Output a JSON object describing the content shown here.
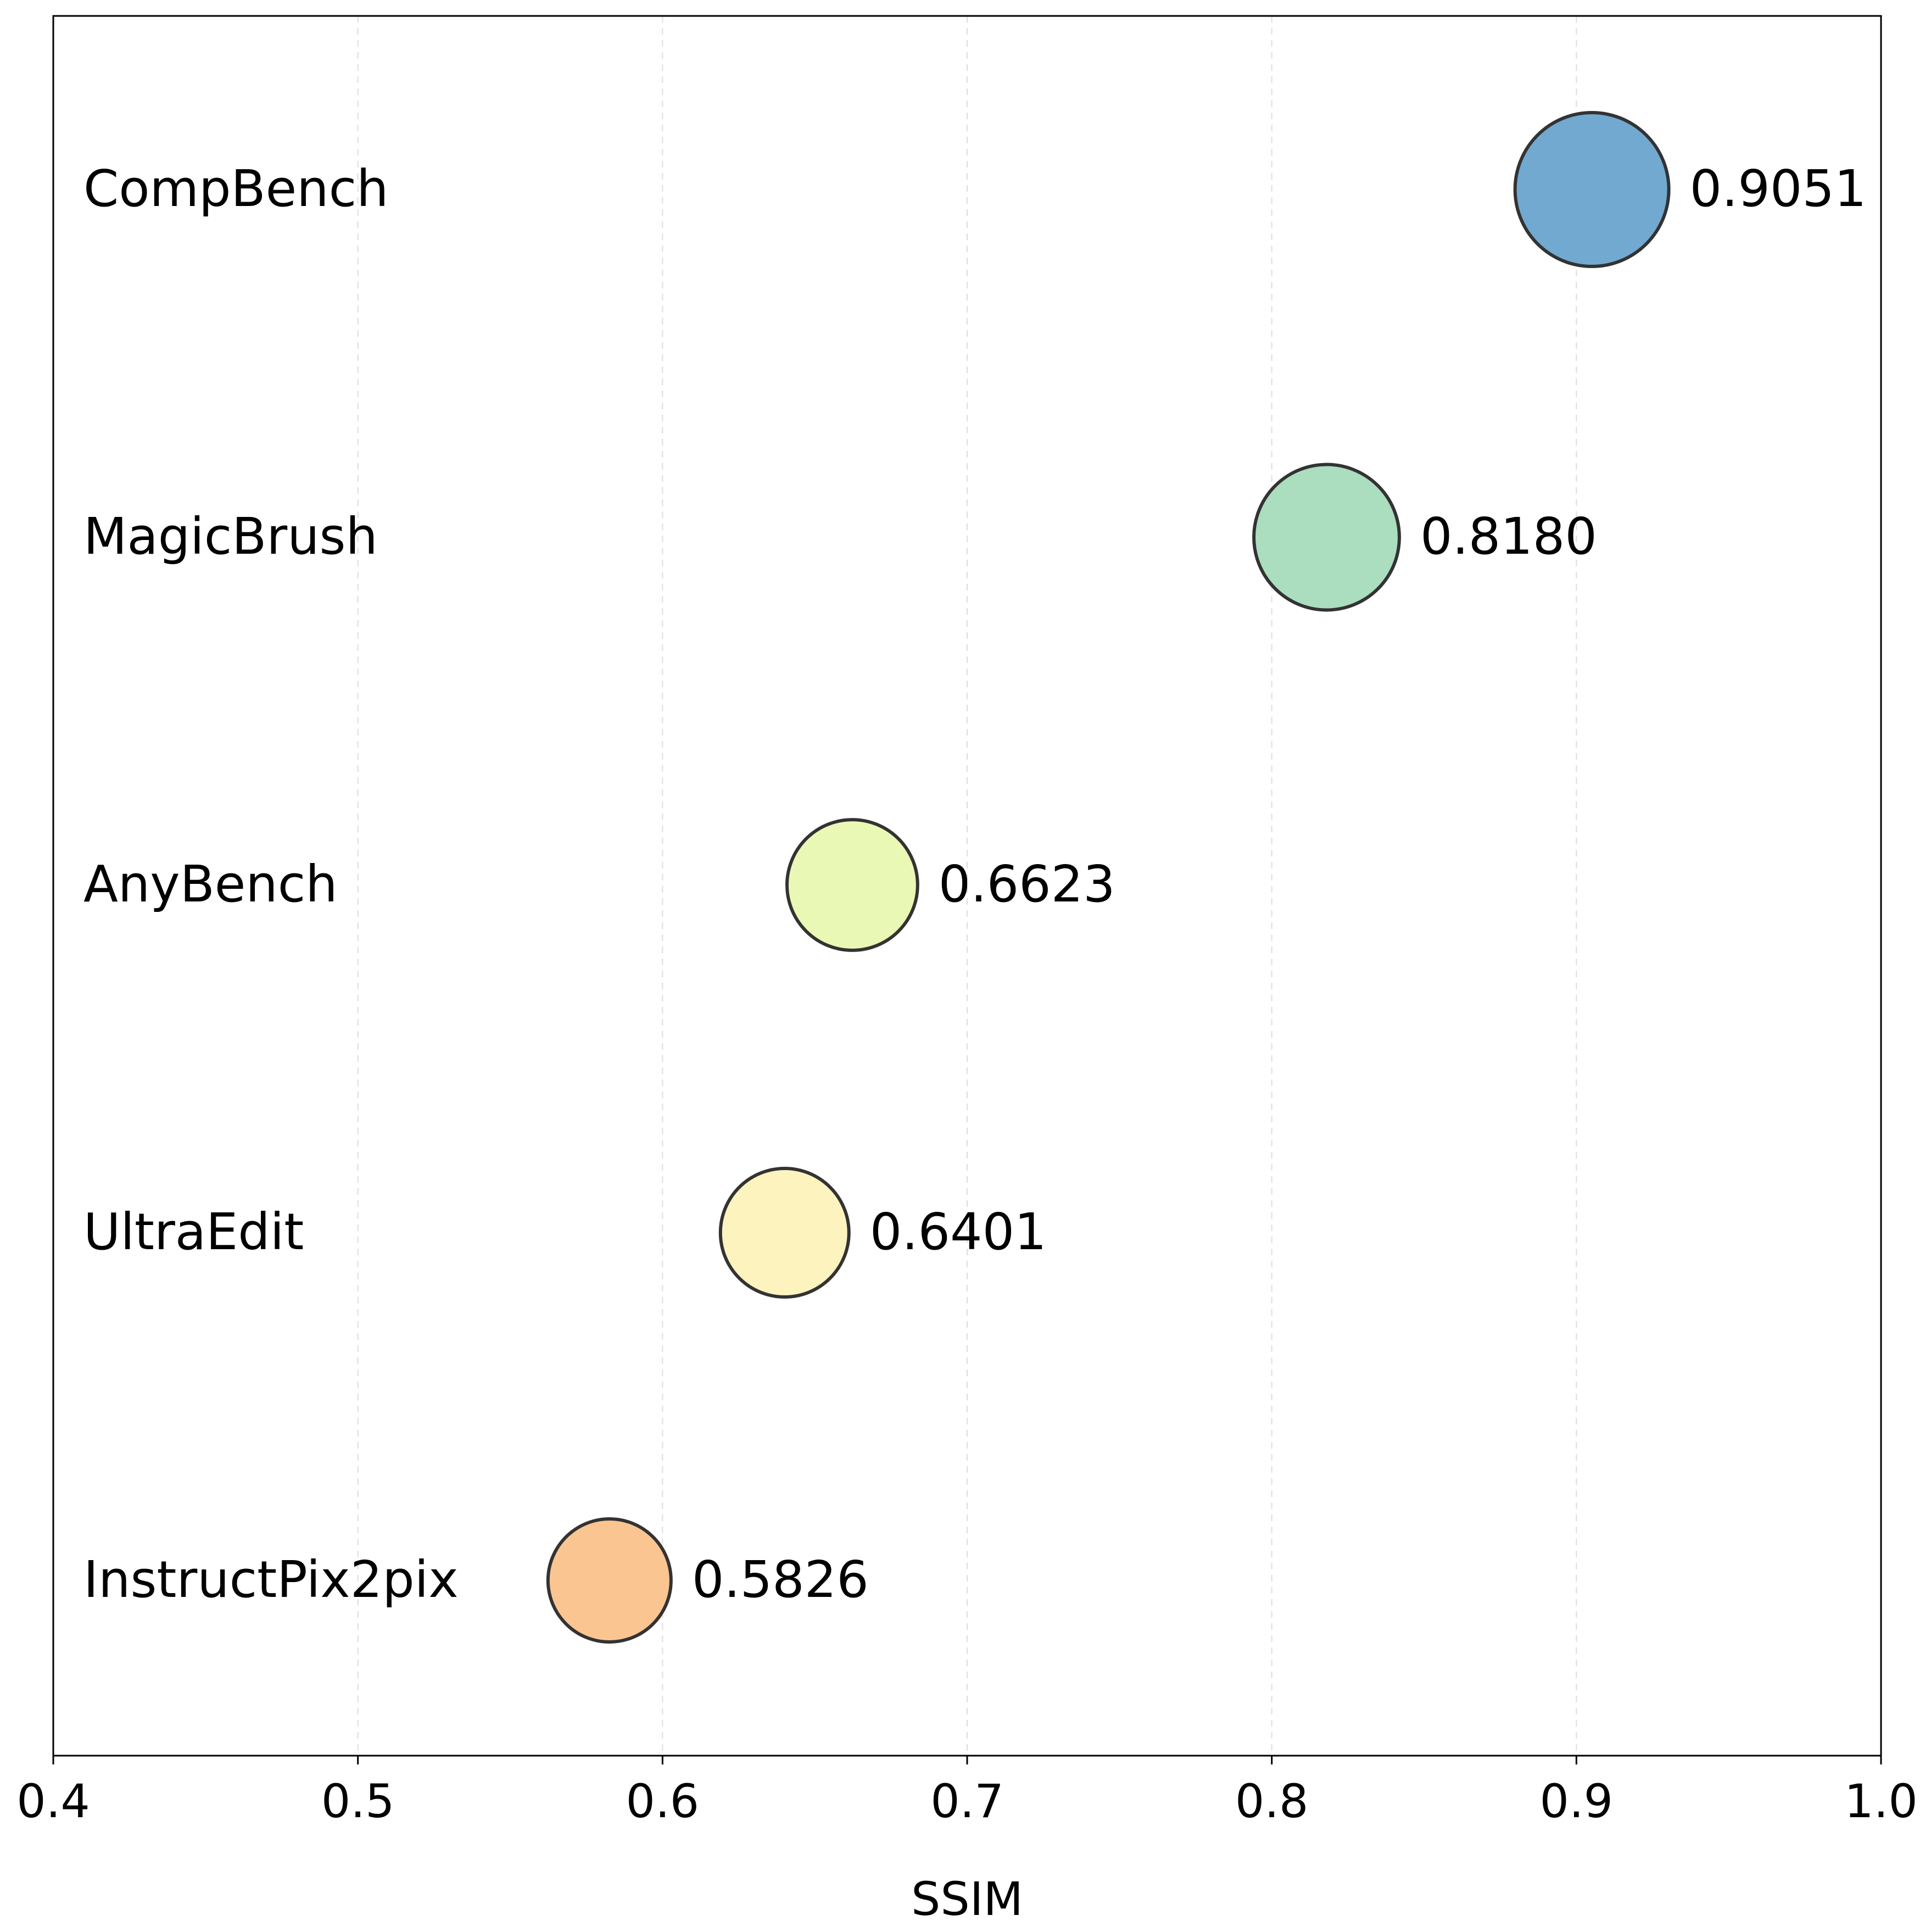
{
  "chart_data": {
    "type": "scatter",
    "subtype": "bubble",
    "title": "",
    "xlabel": "SSIM",
    "ylabel": "",
    "xlim": [
      0.4,
      1.0
    ],
    "xticks": [
      "0.4",
      "0.5",
      "0.6",
      "0.7",
      "0.8",
      "0.9",
      "1.0"
    ],
    "grid": "vertical dashed",
    "legend": "none",
    "points": [
      {
        "name": "CompBench",
        "value": 0.9051,
        "label": "0.9051",
        "color": "#71A9D1"
      },
      {
        "name": "MagicBrush",
        "value": 0.818,
        "label": "0.8180",
        "color": "#ABDDBF"
      },
      {
        "name": "AnyBench",
        "value": 0.6623,
        "label": "0.6623",
        "color": "#EAF8B5"
      },
      {
        "name": "UltraEdit",
        "value": 0.6401,
        "label": "0.6401",
        "color": "#FDF3BF"
      },
      {
        "name": "InstructPix2pix",
        "value": 0.5826,
        "label": "0.5826",
        "color": "#FBC591"
      }
    ],
    "marker_edge_color": "#333333",
    "grid_color": "#DDDDDD"
  }
}
